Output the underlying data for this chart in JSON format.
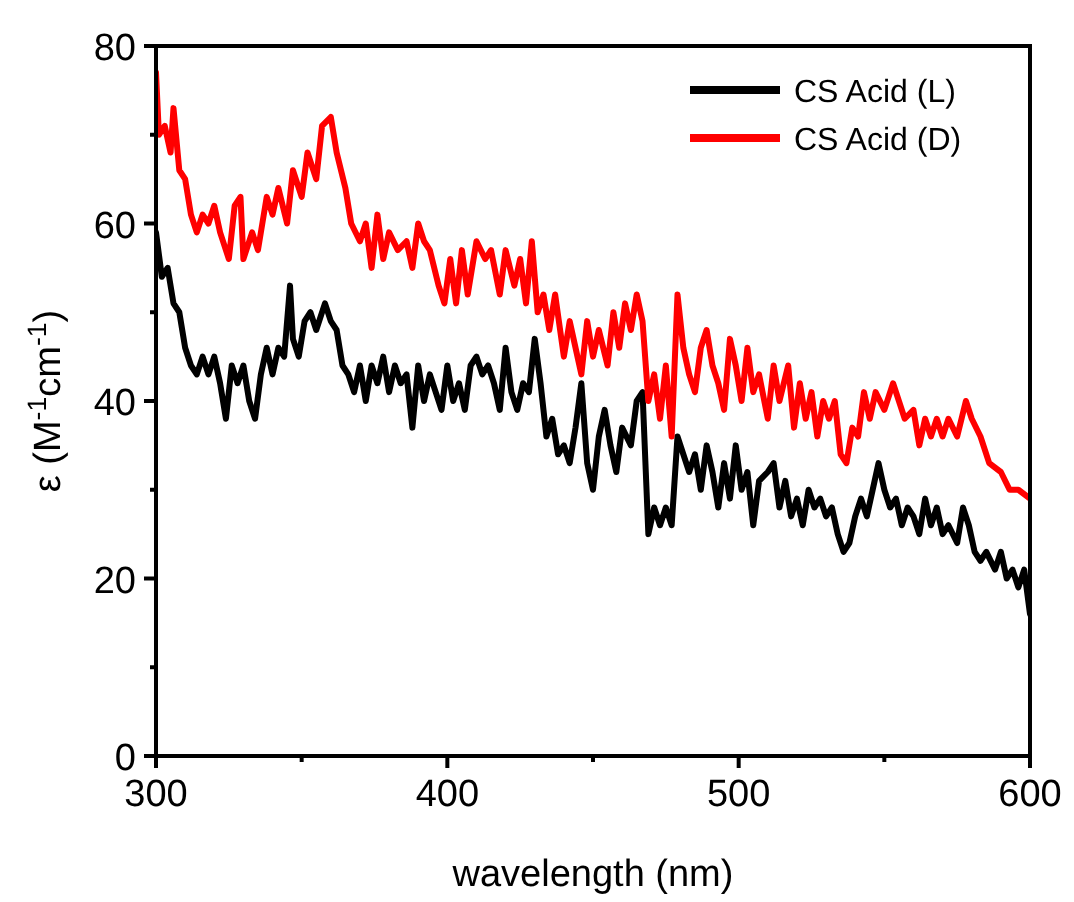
{
  "chart_data": {
    "type": "line",
    "xlabel": "wavelength (nm)",
    "ylabel": "ε (M$^{-1}$cm$^{-1}$)",
    "xlim": [
      300,
      600
    ],
    "ylim": [
      0,
      80
    ],
    "xticks": [
      300,
      {
        "value": 350,
        "label": null
      },
      400,
      {
        "value": 450,
        "label": null
      },
      500,
      {
        "value": 550,
        "label": null
      },
      600
    ],
    "yticks": [
      0,
      {
        "value": 10,
        "label": null
      },
      20,
      {
        "value": 30,
        "label": null
      },
      40,
      {
        "value": 50,
        "label": null
      },
      60,
      {
        "value": 70,
        "label": null
      },
      80
    ],
    "legend": "top right",
    "grid": false,
    "line_style": "solid",
    "series": [
      {
        "name": "CS Acid (L)",
        "color": "#000000",
        "x": [
          300,
          302,
          304,
          306,
          308,
          310,
          312,
          314,
          316,
          318,
          320,
          322,
          324,
          326,
          328,
          330,
          332,
          334,
          336,
          338,
          340,
          342,
          344,
          346,
          347,
          349,
          351,
          353,
          355,
          358,
          360,
          362,
          364,
          366,
          368,
          370,
          372,
          374,
          376,
          378,
          380,
          382,
          384,
          386,
          388,
          390,
          392,
          394,
          396,
          398,
          400,
          402,
          404,
          406,
          408,
          410,
          412,
          414,
          416,
          418,
          420,
          422,
          424,
          426,
          428,
          430,
          432,
          434,
          436,
          438,
          440,
          442,
          444,
          446,
          448,
          450,
          452,
          454,
          456,
          458,
          460,
          463,
          465,
          467,
          469,
          471,
          473,
          475,
          477,
          479,
          481,
          483,
          485,
          487,
          489,
          491,
          493,
          495,
          497,
          499,
          501,
          503,
          505,
          507,
          510,
          512,
          514,
          516,
          518,
          520,
          522,
          524,
          526,
          528,
          530,
          532,
          534,
          536,
          538,
          540,
          542,
          544,
          546,
          548,
          550,
          552,
          554,
          556,
          558,
          560,
          562,
          564,
          566,
          568,
          570,
          572,
          575,
          577,
          579,
          581,
          583,
          585,
          588,
          590,
          592,
          594,
          596,
          598,
          600
        ],
        "values": [
          59,
          54,
          55,
          51,
          50,
          46,
          44,
          43,
          45,
          43,
          45,
          42,
          38,
          44,
          42,
          44,
          40,
          38,
          43,
          46,
          43,
          46,
          45,
          53,
          47,
          45,
          49,
          50,
          48,
          51,
          49,
          48,
          44,
          43,
          41,
          44,
          40,
          44,
          42,
          45,
          41,
          44,
          42,
          43,
          37,
          44,
          40,
          43,
          41,
          39,
          44,
          40,
          42,
          39,
          44,
          45,
          43,
          44,
          42,
          39,
          46,
          41,
          39,
          42,
          41,
          47,
          42,
          36,
          38,
          34,
          35,
          33,
          37,
          42,
          33,
          30,
          36,
          39,
          35,
          32,
          37,
          35,
          40,
          41,
          25,
          28,
          26,
          28,
          26,
          36,
          34,
          32,
          34,
          30,
          35,
          32,
          28,
          33,
          29,
          35,
          30,
          32,
          26,
          31,
          32,
          33,
          28,
          31,
          27,
          29,
          26,
          30,
          28,
          29,
          27,
          28,
          25,
          23,
          24,
          27,
          29,
          27,
          30,
          33,
          30,
          28,
          29,
          26,
          28,
          27,
          25,
          29,
          26,
          28,
          25,
          26,
          24,
          28,
          26,
          23,
          22,
          23,
          21,
          23,
          20,
          21,
          19,
          21,
          16
        ]
      },
      {
        "name": "CS Acid (D)",
        "color": "#ff0000",
        "x": [
          300,
          301,
          303,
          305,
          306,
          308,
          310,
          312,
          314,
          316,
          318,
          320,
          322,
          325,
          327,
          329,
          330,
          333,
          335,
          338,
          340,
          342,
          345,
          347,
          350,
          352,
          355,
          357,
          360,
          362,
          365,
          367,
          370,
          372,
          374,
          376,
          378,
          380,
          383,
          386,
          388,
          390,
          392,
          394,
          397,
          399,
          401,
          403,
          405,
          407,
          410,
          413,
          415,
          418,
          420,
          423,
          425,
          427,
          429,
          431,
          433,
          435,
          437,
          440,
          442,
          444,
          446,
          448,
          450,
          452,
          455,
          457,
          459,
          461,
          463,
          465,
          467,
          469,
          471,
          473,
          475,
          477,
          479,
          481,
          483,
          485,
          487,
          489,
          491,
          493,
          495,
          497,
          499,
          501,
          503,
          505,
          507,
          510,
          512,
          514,
          517,
          519,
          521,
          523,
          525,
          527,
          529,
          531,
          533,
          535,
          537,
          539,
          541,
          543,
          545,
          547,
          550,
          553,
          555,
          557,
          560,
          562,
          564,
          566,
          568,
          570,
          572,
          575,
          578,
          580,
          583,
          586,
          590,
          593,
          596,
          600
        ],
        "values": [
          77,
          70,
          71,
          68,
          73,
          66,
          65,
          61,
          59,
          61,
          60,
          62,
          59,
          56,
          62,
          63,
          56,
          59,
          57,
          63,
          61,
          64,
          60,
          66,
          63,
          68,
          65,
          71,
          72,
          68,
          64,
          60,
          58,
          60,
          55,
          61,
          56,
          59,
          57,
          58,
          55,
          60,
          58,
          57,
          53,
          51,
          56,
          51,
          57,
          52,
          58,
          56,
          57,
          52,
          57,
          53,
          56,
          51,
          58,
          50,
          52,
          48,
          52,
          45,
          49,
          46,
          43,
          49,
          45,
          48,
          44,
          50,
          46,
          51,
          48,
          52,
          49,
          40,
          43,
          38,
          44,
          36,
          52,
          46,
          43,
          41,
          46,
          48,
          44,
          42,
          39,
          47,
          44,
          40,
          46,
          41,
          43,
          38,
          44,
          40,
          44,
          37,
          42,
          38,
          41,
          36,
          40,
          38,
          40,
          34,
          33,
          37,
          36,
          41,
          38,
          41,
          39,
          42,
          40,
          38,
          39,
          35,
          38,
          36,
          38,
          36,
          38,
          36,
          40,
          38,
          36,
          33,
          32,
          30,
          30,
          29
        ]
      }
    ]
  }
}
